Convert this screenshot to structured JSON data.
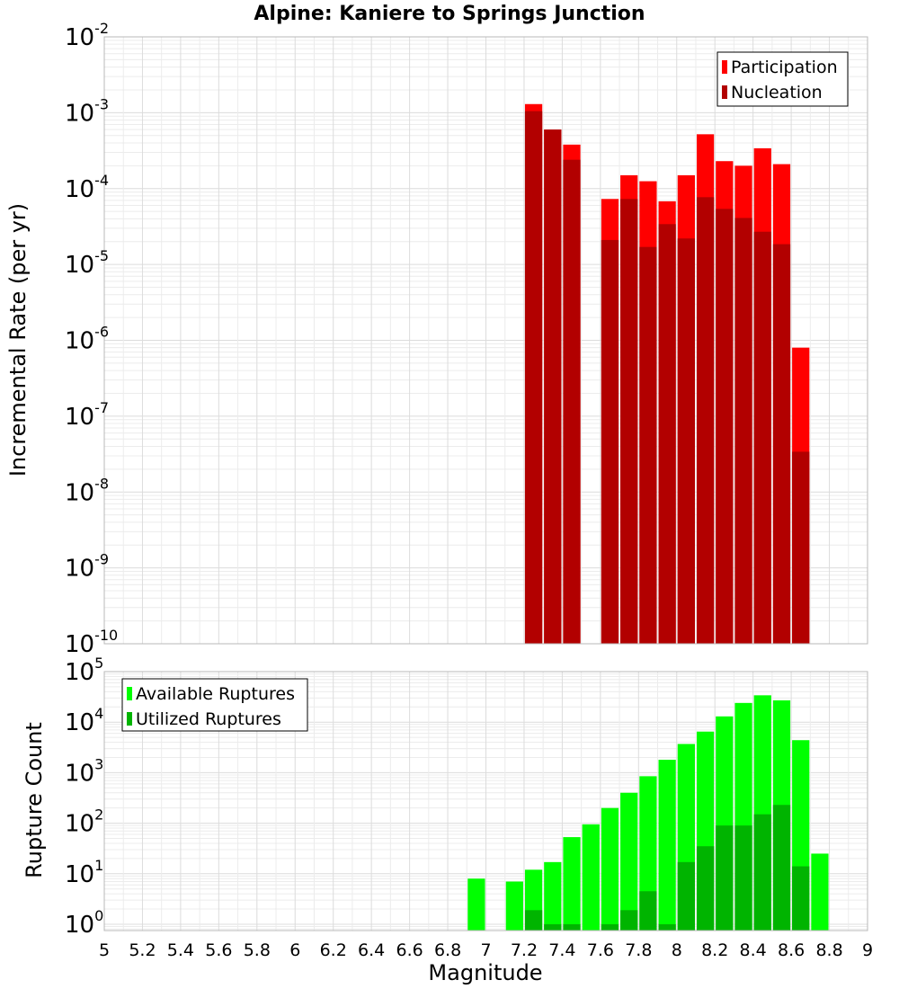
{
  "title": "Alpine: Kaniere to Springs Junction",
  "chart_data": [
    {
      "type": "bar",
      "ylabel": "Incremental Rate (per yr)",
      "xlabel": "",
      "xlim": [
        5,
        9
      ],
      "ylim": [
        1e-10,
        0.01
      ],
      "yscale": "log",
      "ytick_exponents": [
        -10,
        -9,
        -8,
        -7,
        -6,
        -5,
        -4,
        -3,
        -2
      ],
      "ytick_base": "10",
      "grid": true,
      "legend_position": "top-right",
      "bar_width": 0.1,
      "series": [
        {
          "name": "Participation",
          "color": "#ff0000",
          "x": [
            7.25,
            7.35,
            7.45,
            7.65,
            7.75,
            7.85,
            7.95,
            8.05,
            8.15,
            8.25,
            8.35,
            8.45,
            8.55,
            8.65
          ],
          "values": [
            0.0013,
            0.0006,
            0.00038,
            7.3e-05,
            0.00015,
            0.000125,
            6.8e-05,
            0.00015,
            0.00052,
            0.00023,
            0.0002,
            0.00034,
            0.00021,
            8e-07
          ]
        },
        {
          "name": "Nucleation",
          "color": "#b20000",
          "x": [
            7.25,
            7.35,
            7.45,
            7.65,
            7.75,
            7.85,
            7.95,
            8.05,
            8.15,
            8.25,
            8.35,
            8.45,
            8.55,
            8.65
          ],
          "values": [
            0.00105,
            0.0006,
            0.00024,
            2.1e-05,
            7.3e-05,
            1.7e-05,
            3.4e-05,
            2.2e-05,
            7.7e-05,
            5.4e-05,
            4.1e-05,
            2.7e-05,
            1.85e-05,
            3.4e-08
          ]
        }
      ]
    },
    {
      "type": "bar",
      "ylabel": "Rupture Count",
      "xlabel": "Magnitude",
      "xlim": [
        5,
        9
      ],
      "ylim": [
        0.75,
        100000.0
      ],
      "yscale": "log",
      "ytick_exponents": [
        0,
        1,
        2,
        3,
        4,
        5
      ],
      "ytick_base": "10",
      "xticks": [
        "5",
        "5.2",
        "5.4",
        "5.6",
        "5.8",
        "6",
        "6.2",
        "6.4",
        "6.6",
        "6.8",
        "7",
        "7.2",
        "7.4",
        "7.6",
        "7.8",
        "8",
        "8.2",
        "8.4",
        "8.6",
        "8.8",
        "9"
      ],
      "grid": true,
      "legend_position": "top-left",
      "bar_width": 0.1,
      "series": [
        {
          "name": "Available Ruptures",
          "color": "#00ff00",
          "x": [
            6.95,
            7.15,
            7.25,
            7.35,
            7.45,
            7.55,
            7.65,
            7.75,
            7.85,
            7.95,
            8.05,
            8.15,
            8.25,
            8.35,
            8.45,
            8.55,
            8.65,
            8.75
          ],
          "values": [
            8,
            7,
            12,
            17,
            53,
            95,
            200,
            400,
            850,
            1800,
            3700,
            6500,
            13000,
            24000,
            34000,
            27000,
            4400,
            25
          ]
        },
        {
          "name": "Utilized Ruptures",
          "color": "#00b400",
          "x": [
            7.25,
            7.35,
            7.45,
            7.65,
            7.75,
            7.85,
            7.95,
            8.05,
            8.15,
            8.25,
            8.35,
            8.45,
            8.55,
            8.65
          ],
          "values": [
            1.9,
            1,
            1,
            1,
            1.9,
            4.5,
            1,
            17,
            35,
            90,
            90,
            150,
            230,
            14
          ]
        }
      ]
    }
  ]
}
